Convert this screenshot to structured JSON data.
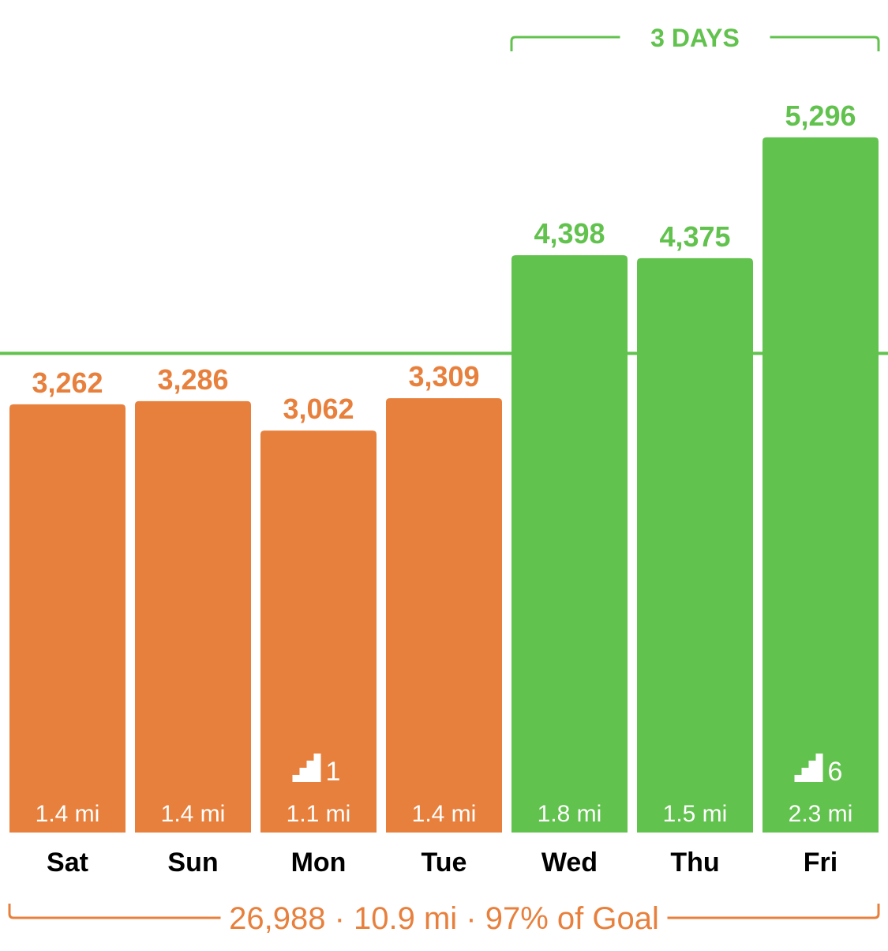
{
  "colors": {
    "below_goal": "#E8803D",
    "met_goal": "#62C24E",
    "day_label": "#000000",
    "bar_text": "#ffffff"
  },
  "chart_data": {
    "type": "bar",
    "categories": [
      "Sat",
      "Sun",
      "Mon",
      "Tue",
      "Wed",
      "Thu",
      "Fri"
    ],
    "values": [
      3262,
      3286,
      3062,
      3309,
      4398,
      4375,
      5296
    ],
    "value_labels": [
      "3,262",
      "3,286",
      "3,062",
      "3,309",
      "4,398",
      "4,375",
      "5,296"
    ],
    "distances": [
      "1.4 mi",
      "1.4 mi",
      "1.1 mi",
      "1.4 mi",
      "1.8 mi",
      "1.5 mi",
      "2.3 mi"
    ],
    "flights": [
      null,
      null,
      1,
      null,
      null,
      null,
      6
    ],
    "met_goal": [
      false,
      false,
      false,
      false,
      true,
      true,
      true
    ],
    "goal_line_value": 3650,
    "ylim": [
      0,
      5560
    ],
    "streak": {
      "label": "3 DAYS",
      "start_index": 4,
      "end_index": 6
    },
    "summary": "26,988 · 10.9 mi · 97% of Goal",
    "title": "",
    "xlabel": "",
    "ylabel": "",
    "grid": false,
    "legend": "none"
  }
}
